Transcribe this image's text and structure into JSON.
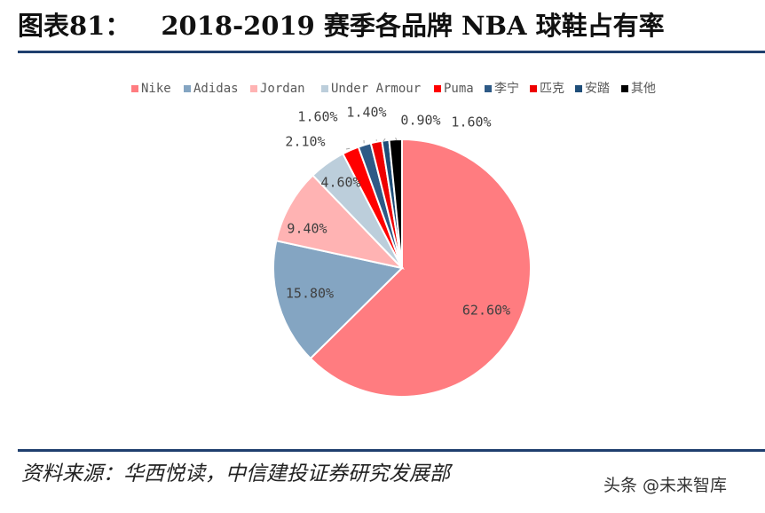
{
  "header": {
    "figure_label": "图表81：",
    "title": "2018-2019 赛季各品牌 NBA 球鞋占有率"
  },
  "chart_data": {
    "type": "pie",
    "title": "2018-2019 赛季各品牌 NBA 球鞋占有率",
    "unit": "%",
    "start_angle_deg": 0,
    "direction": "clockwise",
    "legend_position": "top",
    "slices": [
      {
        "name": "Nike",
        "value": 62.6,
        "label": "62.60%",
        "color": "#ff7c80"
      },
      {
        "name": "Adidas",
        "value": 15.8,
        "label": "15.80%",
        "color": "#84a5c2"
      },
      {
        "name": "Jordan",
        "value": 9.4,
        "label": "9.40%",
        "color": "#ffb3b3"
      },
      {
        "name": "Under Armour",
        "value": 4.6,
        "label": "4.60%",
        "color": "#bccedb"
      },
      {
        "name": "Puma",
        "value": 2.1,
        "label": "2.10%",
        "color": "#ff0000"
      },
      {
        "name": "李宁",
        "value": 1.6,
        "label": "1.60%",
        "color": "#2e5a86"
      },
      {
        "name": "匹克",
        "value": 1.4,
        "label": "1.40%",
        "color": "#ee0000"
      },
      {
        "name": "安踏",
        "value": 0.9,
        "label": "0.90%",
        "color": "#1f4e79"
      },
      {
        "name": "其他",
        "value": 1.6,
        "label": "1.60%",
        "color": "#000000"
      }
    ]
  },
  "footer": {
    "source": "资料来源：华西悦读，中信建投证券研究发展部",
    "watermark": "头条 @未来智库"
  }
}
